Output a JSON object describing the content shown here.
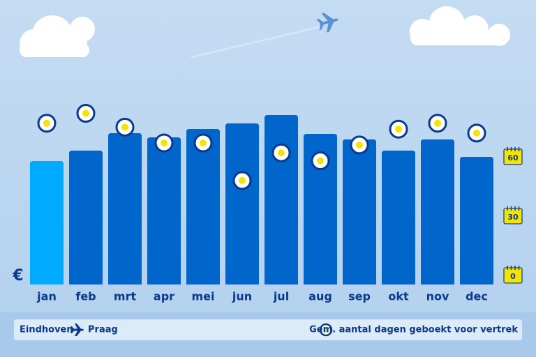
{
  "chart_data": {
    "type": "bar",
    "y_label": "€",
    "categories": [
      "jan",
      "feb",
      "mrt",
      "apr",
      "mei",
      "jun",
      "jul",
      "aug",
      "sep",
      "okt",
      "nov",
      "dec"
    ],
    "values": [
      177,
      192,
      217,
      211,
      223,
      231,
      243,
      216,
      208,
      192,
      208,
      183
    ],
    "colors": [
      "#00aaff",
      "#0066cc",
      "#0066cc",
      "#0066cc",
      "#0066cc",
      "#0066cc",
      "#0066cc",
      "#0066cc",
      "#0066cc",
      "#0066cc",
      "#0066cc",
      "#0066cc"
    ],
    "ylim": [
      0,
      250
    ],
    "series": [
      {
        "name": "Gem. aantal dagen geboekt voor vertrek",
        "axis": "y2",
        "color": "#f5e400",
        "values": [
          77,
          82,
          75,
          67,
          67,
          48,
          62,
          58,
          66,
          74,
          77,
          72
        ]
      }
    ],
    "y2lim": [
      -4.6,
      83.6
    ],
    "y2ticks": [
      0,
      30,
      60
    ],
    "route": {
      "from": "Eindhoven",
      "to": "Praag"
    }
  }
}
